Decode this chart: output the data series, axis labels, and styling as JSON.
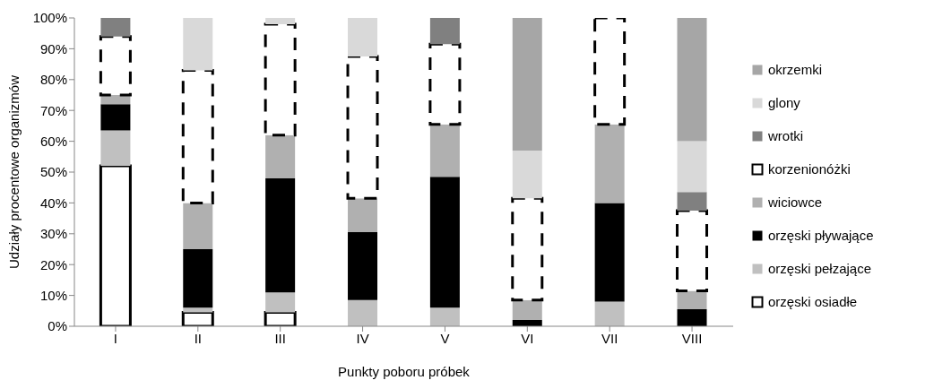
{
  "chart_data": {
    "type": "bar",
    "stacked": true,
    "xlabel": "Punkty poboru próbek",
    "ylabel": "Udziały procentowe organizmów",
    "categories": [
      "I",
      "II",
      "III",
      "IV",
      "V",
      "VI",
      "VII",
      "VIII"
    ],
    "series": [
      {
        "name": "orzęski osiadłe",
        "color": "#ffffff",
        "values": [
          52,
          4.5,
          4.5,
          0,
          0,
          0,
          0,
          0
        ]
      },
      {
        "name": "orzęski pełzające",
        "color": "#c0c0c0",
        "values": [
          11.5,
          1.5,
          6.5,
          8.5,
          6,
          0,
          8,
          0
        ]
      },
      {
        "name": "orzęski pływające",
        "color": "#000000",
        "values": [
          8.5,
          19,
          37,
          22,
          42.5,
          2,
          32,
          5.5
        ]
      },
      {
        "name": "wiciowce",
        "color": "#b0b0b0",
        "values": [
          3,
          15,
          14,
          11,
          17,
          6.5,
          25.5,
          6
        ]
      },
      {
        "name": "korzenionóżki",
        "color": "#ffffff",
        "values": [
          19,
          43,
          36,
          46,
          26,
          33,
          34.5,
          26
        ]
      },
      {
        "name": "wrotki",
        "color": "#808080",
        "values": [
          6,
          0,
          0,
          0,
          8.5,
          0,
          0,
          6
        ]
      },
      {
        "name": "glony",
        "color": "#d9d9d9",
        "values": [
          0,
          17,
          2,
          12.5,
          0,
          15.5,
          0,
          16.5
        ]
      },
      {
        "name": "okrzemki",
        "color": "#a6a6a6",
        "values": [
          0,
          0,
          0,
          0,
          0,
          43,
          0,
          40
        ]
      }
    ],
    "ylim": [
      0,
      100
    ],
    "yticks": [
      {
        "value": 0,
        "label": "0%"
      },
      {
        "value": 10,
        "label": "10%"
      },
      {
        "value": 20,
        "label": "20%"
      },
      {
        "value": 30,
        "label": "30%"
      },
      {
        "value": 40,
        "label": "40%"
      },
      {
        "value": 50,
        "label": "50%"
      },
      {
        "value": 60,
        "label": "60%"
      },
      {
        "value": 70,
        "label": "70%"
      },
      {
        "value": 80,
        "label": "80%"
      },
      {
        "value": 90,
        "label": "90%"
      },
      {
        "value": 100,
        "label": "100%"
      }
    ],
    "grid": false,
    "legend": "right"
  }
}
